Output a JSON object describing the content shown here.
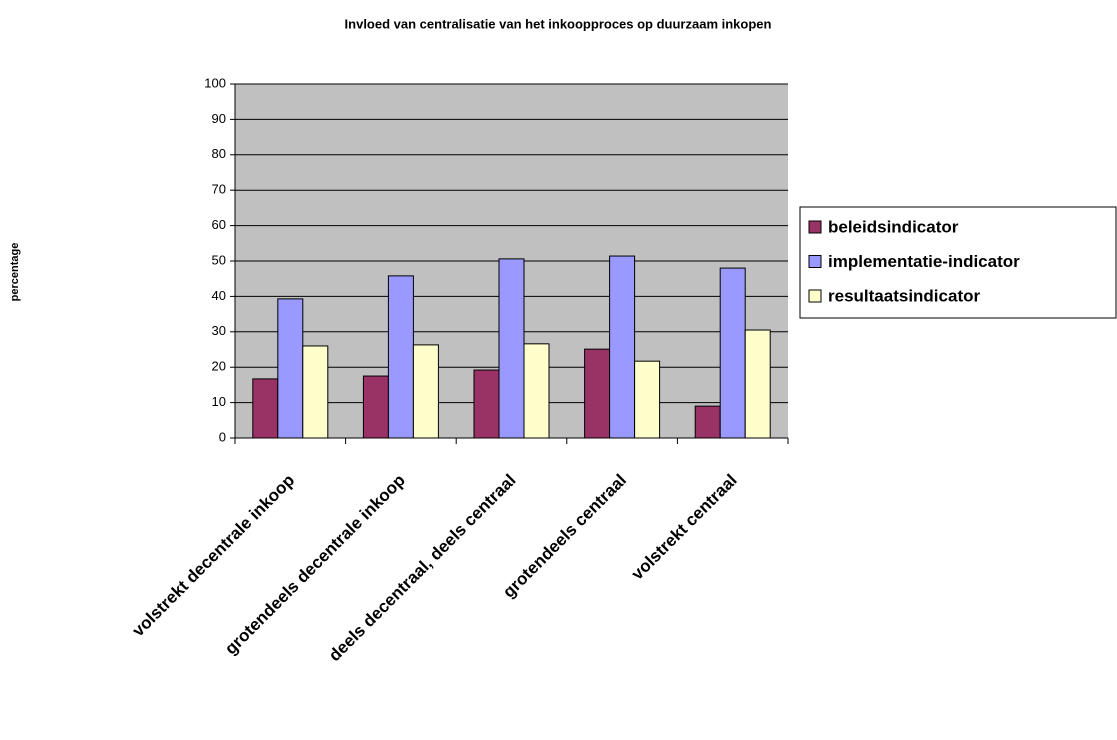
{
  "chart_data": {
    "type": "bar",
    "title": "Invloed van centralisatie van het inkoopproces op duurzaam inkopen",
    "y_label": "percentage",
    "categories": [
      "volstrekt decentrale inkoop",
      "grotendeels decentrale inkoop",
      "deels decentraal, deels centraal",
      "grotendeels centraal",
      "volstrekt centraal"
    ],
    "series": [
      {
        "name": "beleidsindicator",
        "color": "#993366",
        "values": [
          16.7,
          17.5,
          19.2,
          25.1,
          9.0
        ]
      },
      {
        "name": "implementatie-indicator",
        "color": "#9999ff",
        "values": [
          39.3,
          45.8,
          50.6,
          51.4,
          48.0
        ]
      },
      {
        "name": "resultaatsindicator",
        "color": "#ffffcc",
        "values": [
          26.0,
          26.3,
          26.6,
          21.7,
          30.5
        ]
      }
    ],
    "ylim": [
      0,
      100
    ],
    "yticks": [
      0,
      10,
      20,
      30,
      40,
      50,
      60,
      70,
      80,
      90,
      100
    ],
    "grid": true,
    "legend": "right"
  }
}
